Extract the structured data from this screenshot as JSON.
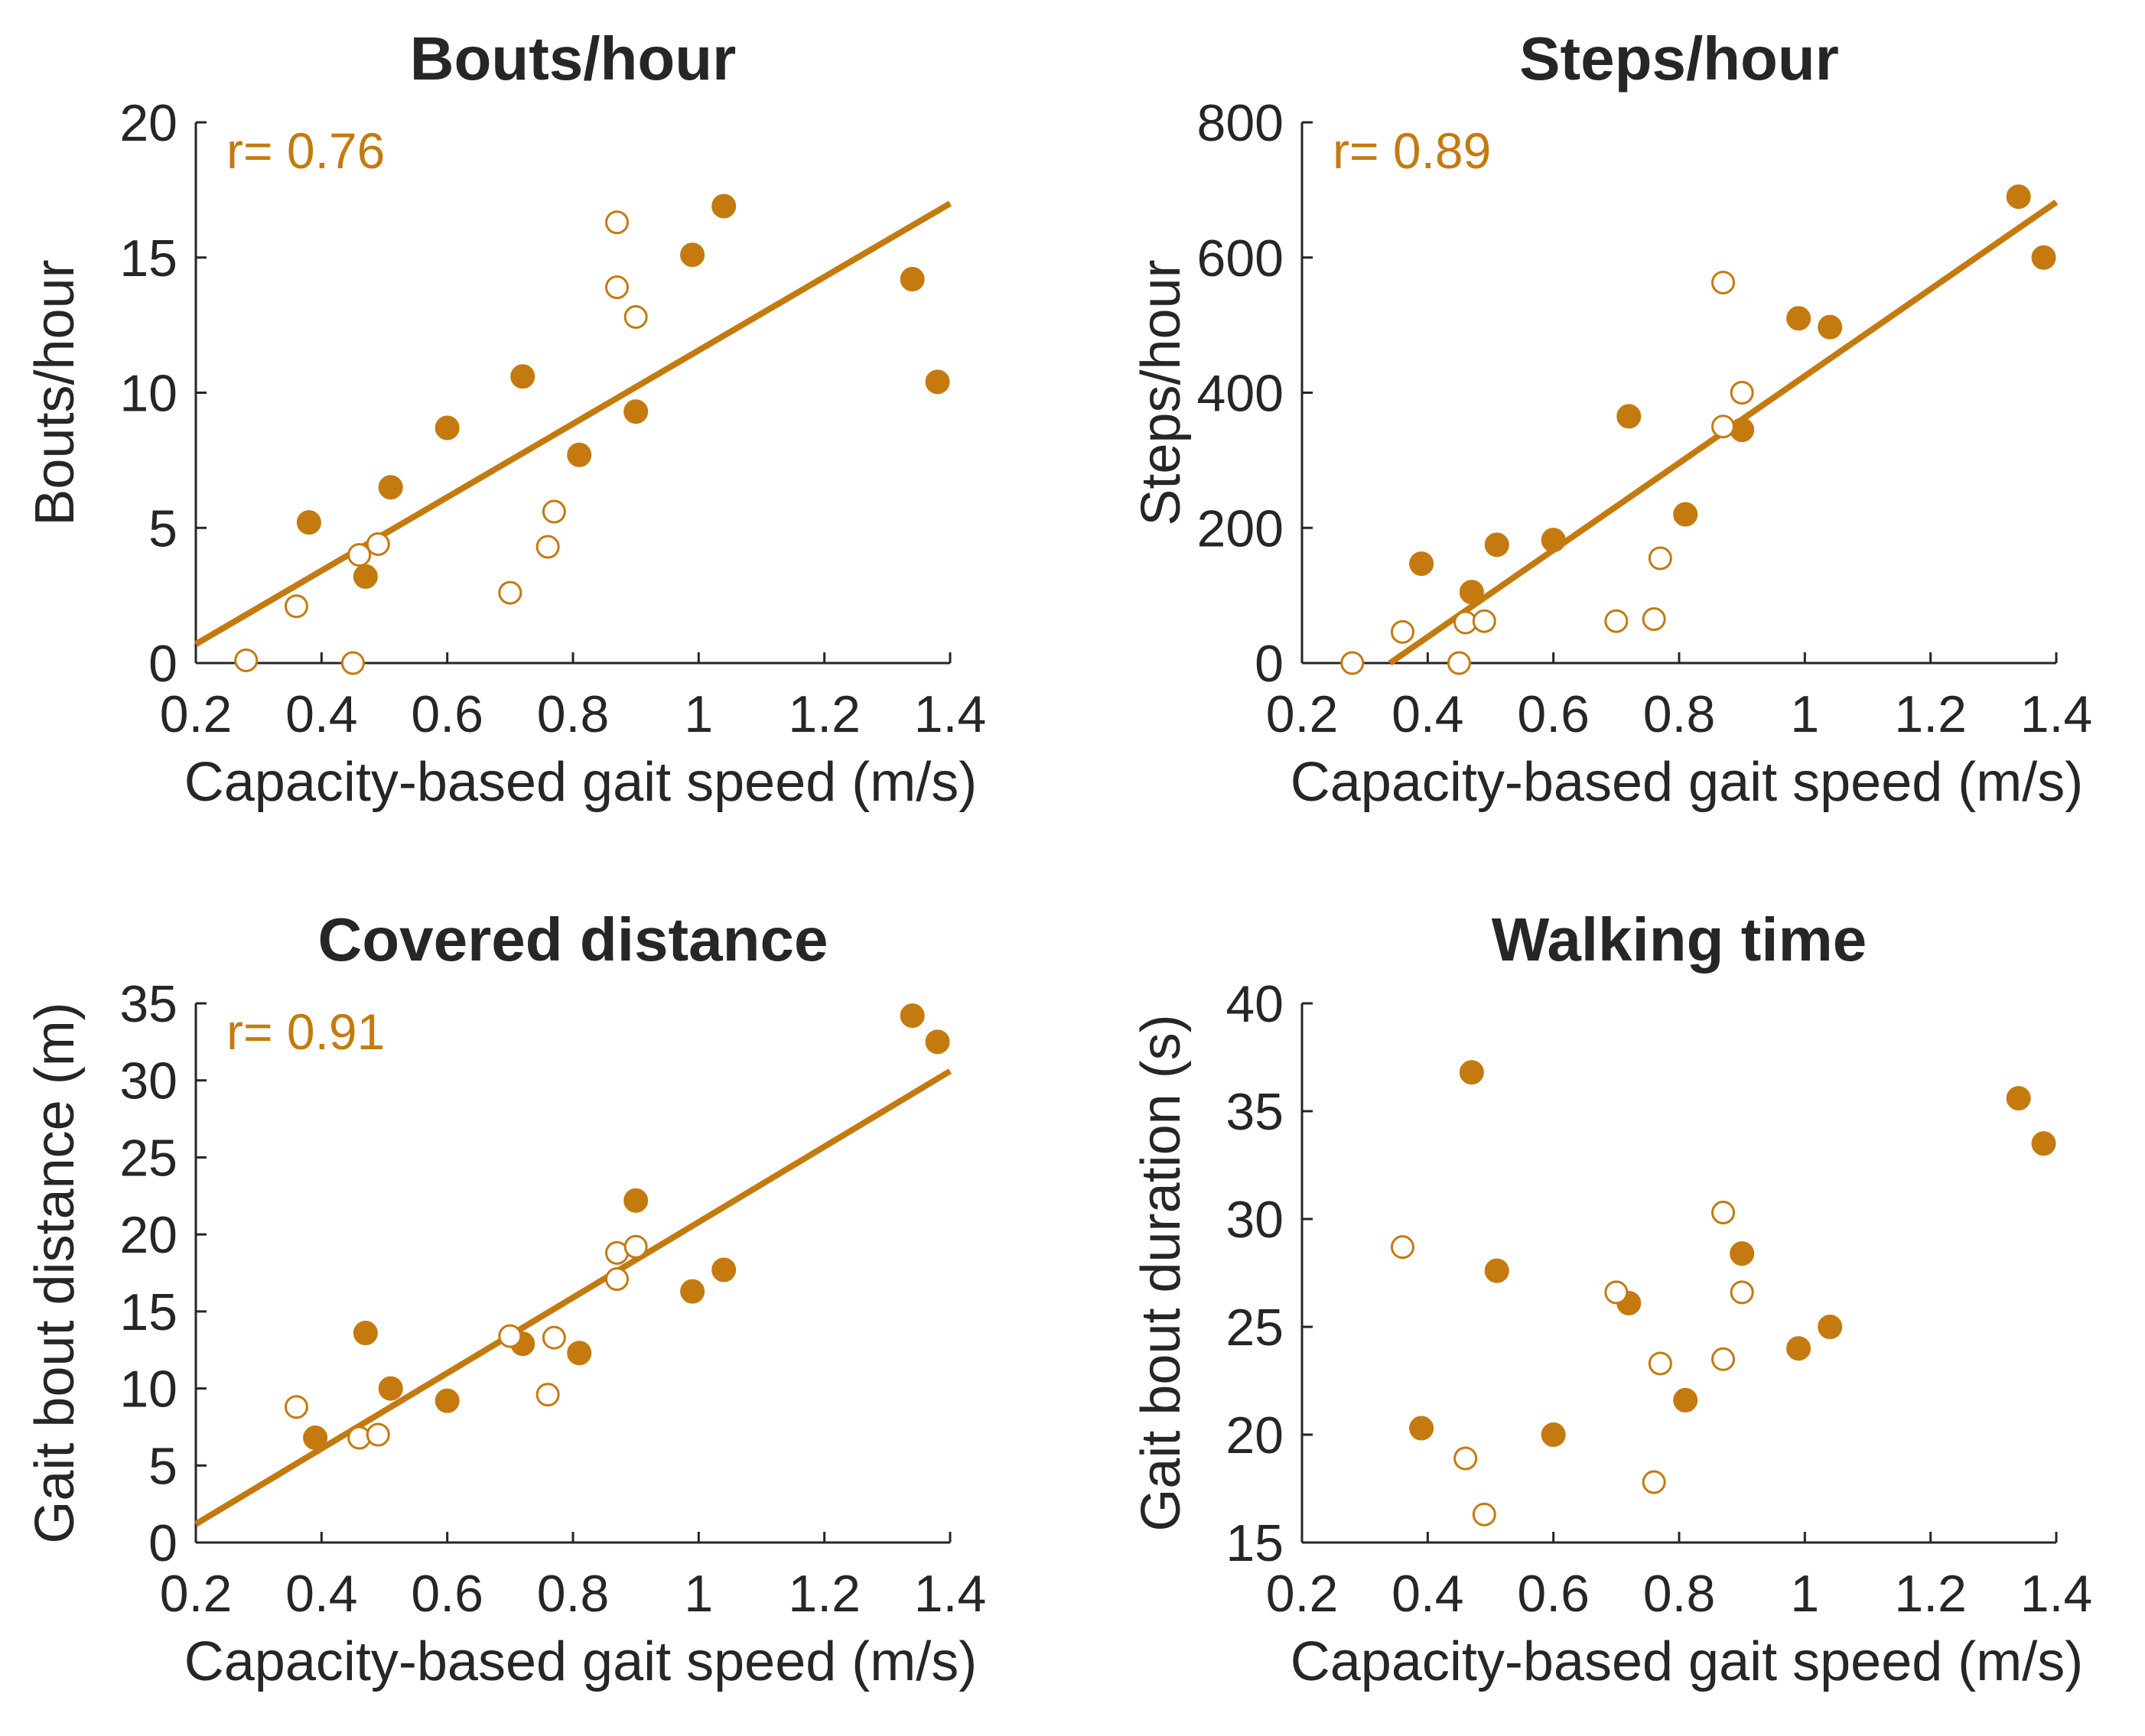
{
  "colors": {
    "accent": "#C47A0E",
    "axis": "#262626"
  },
  "chart_data": [
    {
      "type": "scatter",
      "title": "Bouts/hour",
      "xlabel": "Capacity-based gait speed (m/s)",
      "ylabel": "Bouts/hour",
      "xlim": [
        0.2,
        1.4
      ],
      "ylim": [
        0,
        20
      ],
      "xticks": [
        0.2,
        0.4,
        0.6,
        0.8,
        1,
        1.2,
        1.4
      ],
      "yticks": [
        0,
        5,
        10,
        15,
        20
      ],
      "annotation": "r= 0.76",
      "fit_line": [
        [
          0.2,
          0.7
        ],
        [
          1.4,
          17.0
        ]
      ],
      "series": [
        {
          "name": "filled",
          "x": [
            0.38,
            0.47,
            0.51,
            0.6,
            0.72,
            0.81,
            0.9,
            0.99,
            1.04,
            1.34,
            1.38
          ],
          "y": [
            5.2,
            3.2,
            6.5,
            8.7,
            10.6,
            7.7,
            9.3,
            15.1,
            16.9,
            14.2,
            10.4
          ]
        },
        {
          "name": "open",
          "x": [
            0.28,
            0.36,
            0.45,
            0.46,
            0.49,
            0.7,
            0.76,
            0.77,
            0.87,
            0.87,
            0.9
          ],
          "y": [
            0.1,
            2.1,
            0.0,
            4.0,
            4.4,
            2.6,
            4.3,
            5.6,
            13.9,
            16.3,
            12.8
          ]
        }
      ]
    },
    {
      "type": "scatter",
      "title": "Steps/hour",
      "xlabel": "Capacity-based gait speed (m/s)",
      "ylabel": "Steps/hour",
      "xlim": [
        0.2,
        1.4
      ],
      "ylim": [
        0,
        800
      ],
      "xticks": [
        0.2,
        0.4,
        0.6,
        0.8,
        1,
        1.2,
        1.4
      ],
      "yticks": [
        0,
        200,
        400,
        600,
        800
      ],
      "annotation": "r= 0.89",
      "fit_line": [
        [
          0.34,
          0
        ],
        [
          1.4,
          682
        ]
      ],
      "series": [
        {
          "name": "filled",
          "x": [
            0.39,
            0.47,
            0.51,
            0.6,
            0.72,
            0.81,
            0.9,
            0.99,
            1.04,
            1.34,
            1.38
          ],
          "y": [
            147,
            105,
            175,
            182,
            365,
            220,
            345,
            510,
            497,
            690,
            600
          ]
        },
        {
          "name": "open",
          "x": [
            0.28,
            0.36,
            0.45,
            0.46,
            0.49,
            0.7,
            0.76,
            0.77,
            0.87,
            0.87,
            0.9
          ],
          "y": [
            0,
            46,
            0,
            60,
            62,
            62,
            65,
            155,
            350,
            563,
            400
          ]
        }
      ]
    },
    {
      "type": "scatter",
      "title": "Covered distance",
      "xlabel": "Capacity-based gait speed (m/s)",
      "ylabel": "Gait bout distance (m)",
      "xlim": [
        0.2,
        1.4
      ],
      "ylim": [
        0,
        35
      ],
      "xticks": [
        0.2,
        0.4,
        0.6,
        0.8,
        1,
        1.2,
        1.4
      ],
      "yticks": [
        0,
        5,
        10,
        15,
        20,
        25,
        30,
        35
      ],
      "annotation": "r= 0.91",
      "fit_line": [
        [
          0.2,
          1.2
        ],
        [
          1.4,
          30.6
        ]
      ],
      "series": [
        {
          "name": "filled",
          "x": [
            0.39,
            0.47,
            0.51,
            0.6,
            0.72,
            0.81,
            0.9,
            0.99,
            1.04,
            1.34,
            1.38
          ],
          "y": [
            6.8,
            13.6,
            10.0,
            9.2,
            12.9,
            12.3,
            22.2,
            16.3,
            17.7,
            34.2,
            32.5
          ]
        },
        {
          "name": "open",
          "x": [
            0.36,
            0.46,
            0.49,
            0.7,
            0.76,
            0.77,
            0.87,
            0.87,
            0.9
          ],
          "y": [
            8.8,
            6.8,
            7.0,
            13.4,
            9.6,
            13.3,
            17.1,
            18.8,
            19.2
          ]
        }
      ]
    },
    {
      "type": "scatter",
      "title": "Walking time",
      "xlabel": "Capacity-based gait speed (m/s)",
      "ylabel": "Gait bout duration (s)",
      "xlim": [
        0.2,
        1.4
      ],
      "ylim": [
        15,
        40
      ],
      "xticks": [
        0.2,
        0.4,
        0.6,
        0.8,
        1,
        1.2,
        1.4
      ],
      "yticks": [
        15,
        20,
        25,
        30,
        35,
        40
      ],
      "annotation": "",
      "fit_line": null,
      "series": [
        {
          "name": "filled",
          "x": [
            0.39,
            0.47,
            0.51,
            0.6,
            0.72,
            0.81,
            0.9,
            0.99,
            1.04,
            1.34,
            1.38
          ],
          "y": [
            20.3,
            36.8,
            27.6,
            20.0,
            26.1,
            21.6,
            28.4,
            24.0,
            25.0,
            35.6,
            33.5
          ]
        },
        {
          "name": "open",
          "x": [
            0.36,
            0.46,
            0.49,
            0.7,
            0.76,
            0.77,
            0.87,
            0.87,
            0.9
          ],
          "y": [
            28.7,
            18.9,
            16.3,
            26.6,
            17.8,
            23.3,
            23.5,
            30.3,
            26.6
          ]
        }
      ]
    }
  ]
}
